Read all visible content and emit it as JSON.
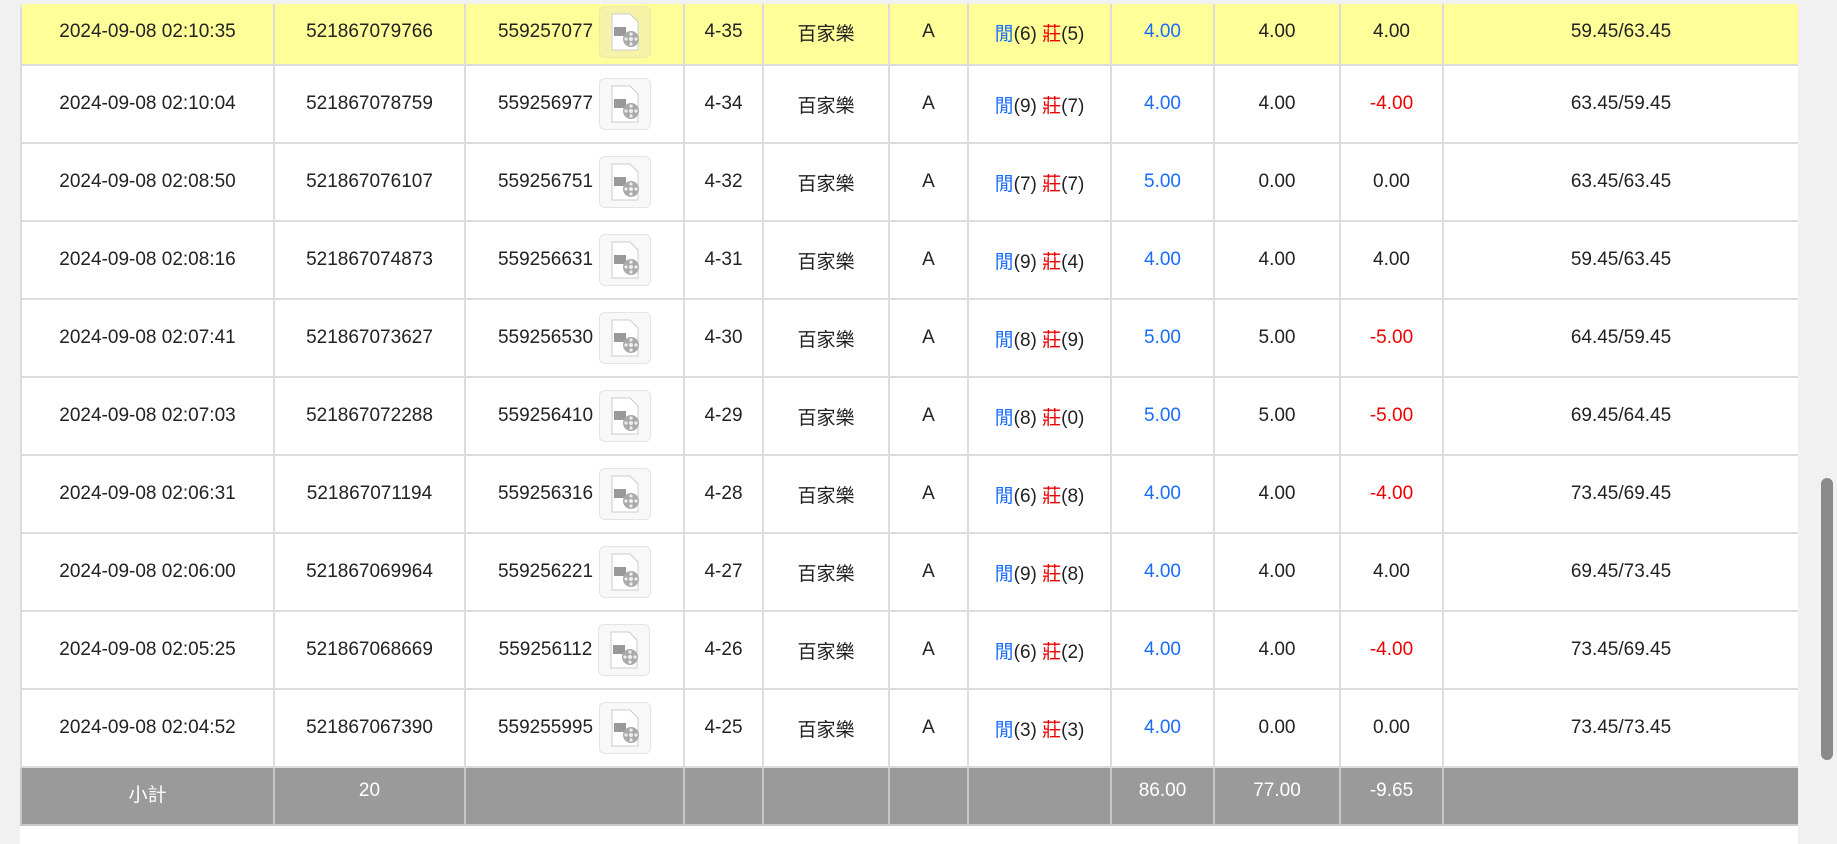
{
  "rows": [
    {
      "time": "2024-09-08 02:10:35",
      "bet_id": "521867079766",
      "game_id": "559257077",
      "round": "4-35",
      "game": "百家樂",
      "table": "A",
      "player_label": "閒",
      "player": "(6)",
      "banker_label": "莊",
      "banker": "(5)",
      "bet": "4.00",
      "valid": "4.00",
      "win": "4.00",
      "win_neg": false,
      "balance": "59.45/63.45",
      "highlight": true
    },
    {
      "time": "2024-09-08 02:10:04",
      "bet_id": "521867078759",
      "game_id": "559256977",
      "round": "4-34",
      "game": "百家樂",
      "table": "A",
      "player_label": "閒",
      "player": "(9)",
      "banker_label": "莊",
      "banker": "(7)",
      "bet": "4.00",
      "valid": "4.00",
      "win": "-4.00",
      "win_neg": true,
      "balance": "63.45/59.45"
    },
    {
      "time": "2024-09-08 02:08:50",
      "bet_id": "521867076107",
      "game_id": "559256751",
      "round": "4-32",
      "game": "百家樂",
      "table": "A",
      "player_label": "閒",
      "player": "(7)",
      "banker_label": "莊",
      "banker": "(7)",
      "bet": "5.00",
      "valid": "0.00",
      "win": "0.00",
      "win_neg": false,
      "balance": "63.45/63.45"
    },
    {
      "time": "2024-09-08 02:08:16",
      "bet_id": "521867074873",
      "game_id": "559256631",
      "round": "4-31",
      "game": "百家樂",
      "table": "A",
      "player_label": "閒",
      "player": "(9)",
      "banker_label": "莊",
      "banker": "(4)",
      "bet": "4.00",
      "valid": "4.00",
      "win": "4.00",
      "win_neg": false,
      "balance": "59.45/63.45"
    },
    {
      "time": "2024-09-08 02:07:41",
      "bet_id": "521867073627",
      "game_id": "559256530",
      "round": "4-30",
      "game": "百家樂",
      "table": "A",
      "player_label": "閒",
      "player": "(8)",
      "banker_label": "莊",
      "banker": "(9)",
      "bet": "5.00",
      "valid": "5.00",
      "win": "-5.00",
      "win_neg": true,
      "balance": "64.45/59.45"
    },
    {
      "time": "2024-09-08 02:07:03",
      "bet_id": "521867072288",
      "game_id": "559256410",
      "round": "4-29",
      "game": "百家樂",
      "table": "A",
      "player_label": "閒",
      "player": "(8)",
      "banker_label": "莊",
      "banker": "(0)",
      "bet": "5.00",
      "valid": "5.00",
      "win": "-5.00",
      "win_neg": true,
      "balance": "69.45/64.45"
    },
    {
      "time": "2024-09-08 02:06:31",
      "bet_id": "521867071194",
      "game_id": "559256316",
      "round": "4-28",
      "game": "百家樂",
      "table": "A",
      "player_label": "閒",
      "player": "(6)",
      "banker_label": "莊",
      "banker": "(8)",
      "bet": "4.00",
      "valid": "4.00",
      "win": "-4.00",
      "win_neg": true,
      "balance": "73.45/69.45"
    },
    {
      "time": "2024-09-08 02:06:00",
      "bet_id": "521867069964",
      "game_id": "559256221",
      "round": "4-27",
      "game": "百家樂",
      "table": "A",
      "player_label": "閒",
      "player": "(9)",
      "banker_label": "莊",
      "banker": "(8)",
      "bet": "4.00",
      "valid": "4.00",
      "win": "4.00",
      "win_neg": false,
      "balance": "69.45/73.45"
    },
    {
      "time": "2024-09-08 02:05:25",
      "bet_id": "521867068669",
      "game_id": "559256112",
      "round": "4-26",
      "game": "百家樂",
      "table": "A",
      "player_label": "閒",
      "player": "(6)",
      "banker_label": "莊",
      "banker": "(2)",
      "bet": "4.00",
      "valid": "4.00",
      "win": "-4.00",
      "win_neg": true,
      "balance": "73.45/69.45"
    },
    {
      "time": "2024-09-08 02:04:52",
      "bet_id": "521867067390",
      "game_id": "559255995",
      "round": "4-25",
      "game": "百家樂",
      "table": "A",
      "player_label": "閒",
      "player": "(3)",
      "banker_label": "莊",
      "banker": "(3)",
      "bet": "4.00",
      "valid": "0.00",
      "win": "0.00",
      "win_neg": false,
      "balance": "73.45/73.45"
    }
  ],
  "subtotal": {
    "label": "小計",
    "count": "20",
    "bet": "86.00",
    "valid": "77.00",
    "win": "-9.65"
  },
  "icons": {
    "replay": "film-video-icon"
  },
  "colors": {
    "highlight": "#ffff99",
    "player": "#1a6cff",
    "banker": "#ee0000",
    "negative": "#ee0000",
    "subtotal_bg": "#9a9a9a"
  }
}
